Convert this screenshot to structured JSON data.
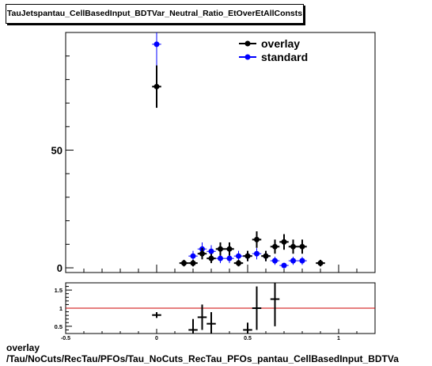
{
  "title": "TauJetspantau_CellBasedInput_BDTVar_Neutral_Ratio_EtOverEtAllConsts",
  "footer": {
    "line1": "overlay",
    "line2": "/Tau/NoCuts/RecTau/PFOs/Tau_NoCuts_RecTau_PFOs_pantau_CellBasedInput_BDTVa"
  },
  "colors": {
    "overlay": "#000000",
    "standard": "#0000ff",
    "ratio_line": "#cc0000"
  },
  "chart_data": [
    {
      "type": "scatter",
      "title": "TauJetspantau_CellBasedInput_BDTVar_Neutral_Ratio_EtOverEtAllConsts",
      "xlim": [
        -0.5,
        1.2
      ],
      "ylim": [
        -2,
        100
      ],
      "y_ticks": [
        "0",
        "50"
      ],
      "legend": "top-right",
      "series": [
        {
          "name": "overlay",
          "points": [
            {
              "x": 0.0,
              "y": 77,
              "err": 9
            },
            {
              "x": 0.15,
              "y": 2,
              "err": 1.4
            },
            {
              "x": 0.2,
              "y": 2,
              "err": 1.4
            },
            {
              "x": 0.25,
              "y": 6,
              "err": 2.4
            },
            {
              "x": 0.3,
              "y": 4,
              "err": 2
            },
            {
              "x": 0.35,
              "y": 8,
              "err": 2.8
            },
            {
              "x": 0.4,
              "y": 8,
              "err": 2.8
            },
            {
              "x": 0.45,
              "y": 2,
              "err": 1.4
            },
            {
              "x": 0.5,
              "y": 5,
              "err": 2.2
            },
            {
              "x": 0.55,
              "y": 12,
              "err": 3.5
            },
            {
              "x": 0.6,
              "y": 5,
              "err": 2.2
            },
            {
              "x": 0.65,
              "y": 9,
              "err": 3
            },
            {
              "x": 0.7,
              "y": 11,
              "err": 3.3
            },
            {
              "x": 0.75,
              "y": 9,
              "err": 3
            },
            {
              "x": 0.8,
              "y": 9,
              "err": 3
            },
            {
              "x": 0.9,
              "y": 2,
              "err": 1.4
            }
          ]
        },
        {
          "name": "standard",
          "points": [
            {
              "x": 0.0,
              "y": 95,
              "err": 9.7
            },
            {
              "x": 0.2,
              "y": 5,
              "err": 2.2
            },
            {
              "x": 0.25,
              "y": 8,
              "err": 2.8
            },
            {
              "x": 0.3,
              "y": 7,
              "err": 2.6
            },
            {
              "x": 0.35,
              "y": 4,
              "err": 2
            },
            {
              "x": 0.4,
              "y": 4,
              "err": 2
            },
            {
              "x": 0.45,
              "y": 5,
              "err": 2.2
            },
            {
              "x": 0.5,
              "y": 5,
              "err": 2.2
            },
            {
              "x": 0.55,
              "y": 6,
              "err": 2.4
            },
            {
              "x": 0.6,
              "y": 5,
              "err": 2.2
            },
            {
              "x": 0.65,
              "y": 3,
              "err": 1.7
            },
            {
              "x": 0.7,
              "y": 1,
              "err": 1
            },
            {
              "x": 0.75,
              "y": 3,
              "err": 1.7
            },
            {
              "x": 0.8,
              "y": 3,
              "err": 1.7
            }
          ]
        }
      ]
    },
    {
      "type": "scatter",
      "xlim": [
        -0.5,
        1.2
      ],
      "ylim": [
        0.3,
        1.7
      ],
      "x_ticks": [
        "-0.5",
        "0",
        "0.5",
        "1"
      ],
      "x_tick_values": [
        -0.5,
        0,
        0.5,
        1
      ],
      "y_ticks": [
        "0.5",
        "1",
        "1.5"
      ],
      "y_tick_values": [
        0.5,
        1,
        1.5
      ],
      "reference_line": 1,
      "points": [
        {
          "x": 0.0,
          "y": 0.81,
          "err": 0.08
        },
        {
          "x": 0.2,
          "y": 0.4,
          "err": 0.3
        },
        {
          "x": 0.25,
          "y": 0.75,
          "err": 0.35
        },
        {
          "x": 0.3,
          "y": 0.57,
          "err": 0.32
        },
        {
          "x": 0.5,
          "y": 0.4,
          "err": 0.2
        },
        {
          "x": 0.55,
          "y": 1.0,
          "err": 0.6
        },
        {
          "x": 0.65,
          "y": 1.25,
          "err": 0.75
        }
      ]
    }
  ]
}
